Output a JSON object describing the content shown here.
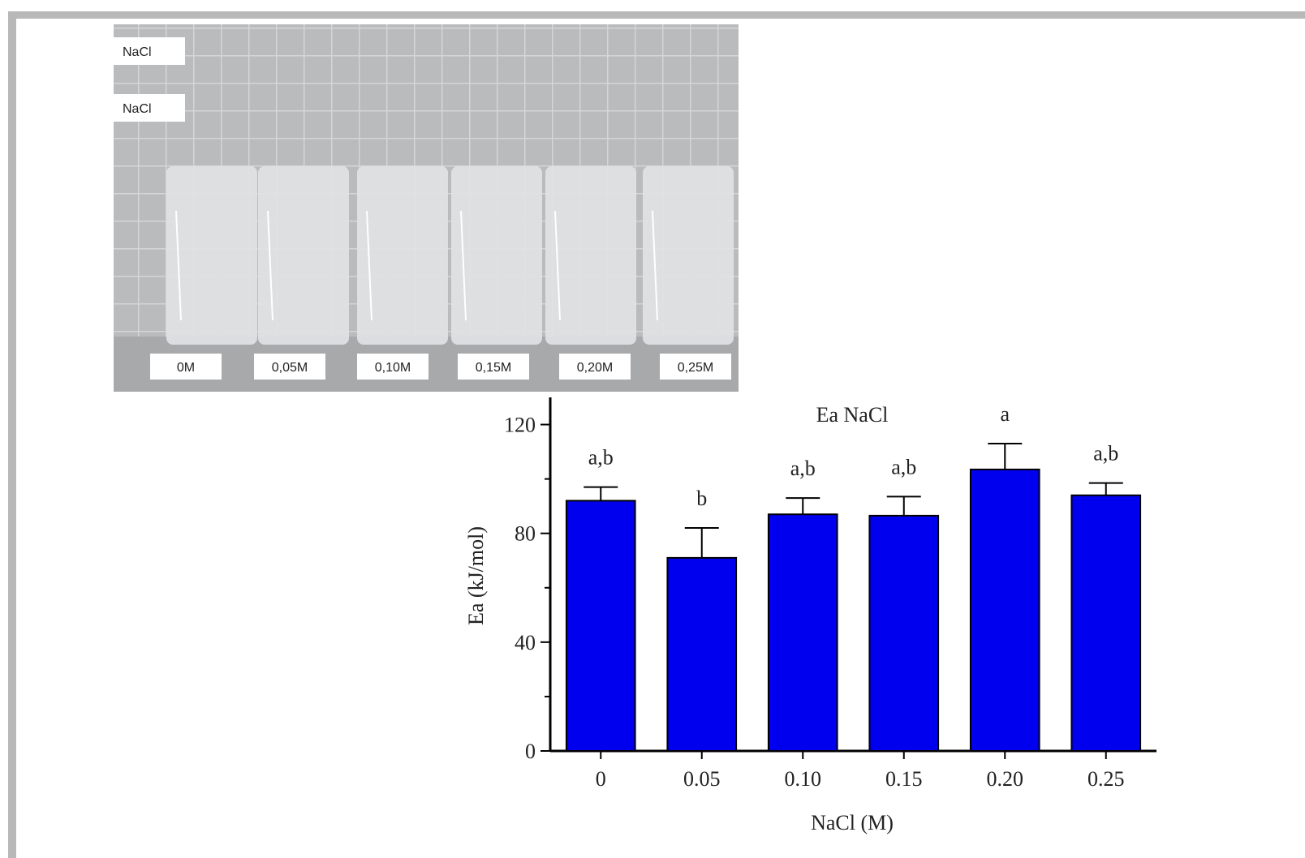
{
  "photo": {
    "side_labels": [
      "NaCl",
      "NaCl"
    ],
    "vial_labels": [
      "0M",
      "0,05M",
      "0,10M",
      "0,15M",
      "0,20M",
      "0,25M"
    ]
  },
  "chart_data": {
    "type": "bar",
    "title": "Ea NaCl",
    "x_label": "NaCl (M)",
    "y_label": "Ea (kJ/mol)",
    "categories": [
      "0",
      "0.05",
      "0.10",
      "0.15",
      "0.20",
      "0.25"
    ],
    "values": [
      92,
      71,
      87,
      86.5,
      103.5,
      94
    ],
    "errors": [
      5,
      11,
      6,
      7,
      9.5,
      4.5
    ],
    "annotations": [
      "a,b",
      "b",
      "a,b",
      "a,b",
      "a",
      "a,b"
    ],
    "color": "#0000ee",
    "ylim": [
      0,
      130
    ],
    "yticks": [
      0,
      40,
      80,
      120
    ],
    "yminorticks": [
      20,
      60,
      100
    ]
  }
}
